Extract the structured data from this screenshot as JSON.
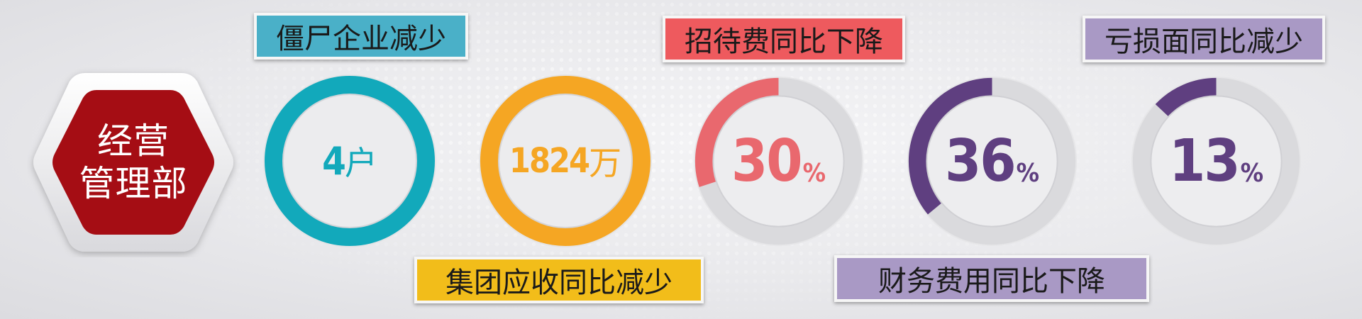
{
  "department": {
    "line1": "经营",
    "line2": "管理部",
    "color": "#a50d14"
  },
  "metrics": [
    {
      "label": "僵尸企业减少",
      "value": "4",
      "unit": "户",
      "label_bg": "#4ab0c8",
      "color": "#12a9bb"
    },
    {
      "label": "集团应收同比减少",
      "value": "1824",
      "unit": "万",
      "label_bg": "#f2bd1a",
      "color": "#f5a623"
    },
    {
      "label": "招待费同比下降",
      "value": "30",
      "unit": "%",
      "percent": 30,
      "label_bg": "#ee5a5e",
      "color": "#e9686e"
    },
    {
      "label": "财务费用同比下降",
      "value": "36",
      "unit": "%",
      "percent": 36,
      "label_bg": "#a999c5",
      "color": "#5f3f80"
    },
    {
      "label": "亏损面同比减少",
      "value": "13",
      "unit": "%",
      "percent": 13,
      "label_bg": "#a999c5",
      "color": "#5f3f80"
    }
  ]
}
